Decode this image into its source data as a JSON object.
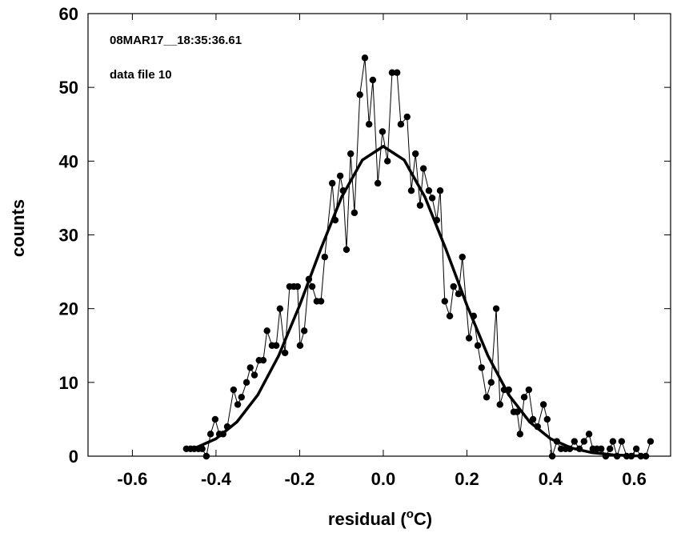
{
  "chart_data": {
    "type": "line",
    "x_label": {
      "text": "residual  (",
      "sup": "o",
      "unit": "C)"
    },
    "y_label": "counts",
    "annotations": [
      "08MAR17__18:35:36.61",
      "data file 10"
    ],
    "xlim": [
      -0.706,
      0.687
    ],
    "ylim": [
      0,
      60
    ],
    "xticks": [
      -0.6,
      -0.4,
      -0.2,
      {
        "value": 0,
        "label": "0.0"
      },
      0.2,
      0.4,
      0.6
    ],
    "yticks": [
      0,
      10,
      20,
      30,
      40,
      50,
      60
    ],
    "series": [
      {
        "color": "#000000",
        "markers": true,
        "x": [
          -0.471,
          -0.461,
          -0.452,
          -0.442,
          -0.433,
          -0.423,
          -0.413,
          -0.402,
          -0.392,
          -0.383,
          -0.373,
          -0.358,
          -0.348,
          -0.339,
          -0.327,
          -0.318,
          -0.308,
          -0.297,
          -0.287,
          -0.278,
          -0.266,
          -0.256,
          -0.247,
          -0.235,
          -0.224,
          -0.214,
          -0.205,
          -0.199,
          -0.189,
          -0.178,
          -0.17,
          -0.159,
          -0.149,
          -0.14,
          -0.122,
          -0.115,
          -0.103,
          -0.096,
          -0.088,
          -0.078,
          -0.069,
          -0.056,
          -0.044,
          -0.034,
          -0.025,
          -0.013,
          -0.002,
          0.01,
          0.021,
          0.033,
          0.042,
          0.057,
          0.067,
          0.077,
          0.088,
          0.096,
          0.109,
          0.117,
          0.128,
          0.136,
          0.147,
          0.159,
          0.168,
          0.18,
          0.189,
          0.205,
          0.216,
          0.226,
          0.235,
          0.247,
          0.258,
          0.27,
          0.279,
          0.289,
          0.3,
          0.312,
          0.32,
          0.327,
          0.337,
          0.348,
          0.358,
          0.369,
          0.383,
          0.392,
          0.404,
          0.415,
          0.425,
          0.436,
          0.446,
          0.457,
          0.469,
          0.48,
          0.492,
          0.501,
          0.511,
          0.521,
          0.532,
          0.542,
          0.549,
          0.559,
          0.57,
          0.582,
          0.593,
          0.605,
          0.616,
          0.628,
          0.639
        ],
        "values": [
          1,
          1,
          1,
          1,
          1,
          0,
          3,
          5,
          3,
          3,
          4,
          9,
          7,
          8,
          10,
          12,
          11,
          13,
          13,
          17,
          15,
          15,
          20,
          14,
          23,
          23,
          23,
          15,
          17,
          24,
          23,
          21,
          21,
          27,
          37,
          32,
          38,
          36,
          28,
          41,
          33,
          49,
          54,
          45,
          51,
          37,
          44,
          40,
          52,
          52,
          45,
          46,
          36,
          41,
          34,
          39,
          36,
          35,
          32,
          36,
          21,
          19,
          23,
          22,
          27,
          16,
          19,
          15,
          12,
          8,
          10,
          20,
          7,
          9,
          9,
          6,
          6,
          3,
          8,
          9,
          5,
          4,
          7,
          5,
          0,
          2,
          1,
          1,
          1,
          2,
          1,
          2,
          3,
          1,
          1,
          1,
          0,
          1,
          2,
          0,
          2,
          0,
          0,
          1,
          0,
          0,
          2
        ]
      },
      {
        "color": "#000000",
        "markers": false,
        "x": [
          -0.47,
          -0.45,
          -0.4,
          -0.35,
          -0.3,
          -0.25,
          -0.2,
          -0.15,
          -0.1,
          -0.05,
          0,
          0.05,
          0.1,
          0.15,
          0.2,
          0.25,
          0.3,
          0.35,
          0.4,
          0.45,
          0.5,
          0.55,
          0.6,
          0.63
        ],
        "values": [
          0.79,
          1.1,
          2.36,
          4.64,
          8.31,
          13.64,
          20.45,
          28.02,
          35.08,
          40.15,
          42,
          40.15,
          35.08,
          28.02,
          20.45,
          13.64,
          8.31,
          4.64,
          2.36,
          1.1,
          0.47,
          0.18,
          0.06,
          0.03
        ]
      }
    ]
  }
}
